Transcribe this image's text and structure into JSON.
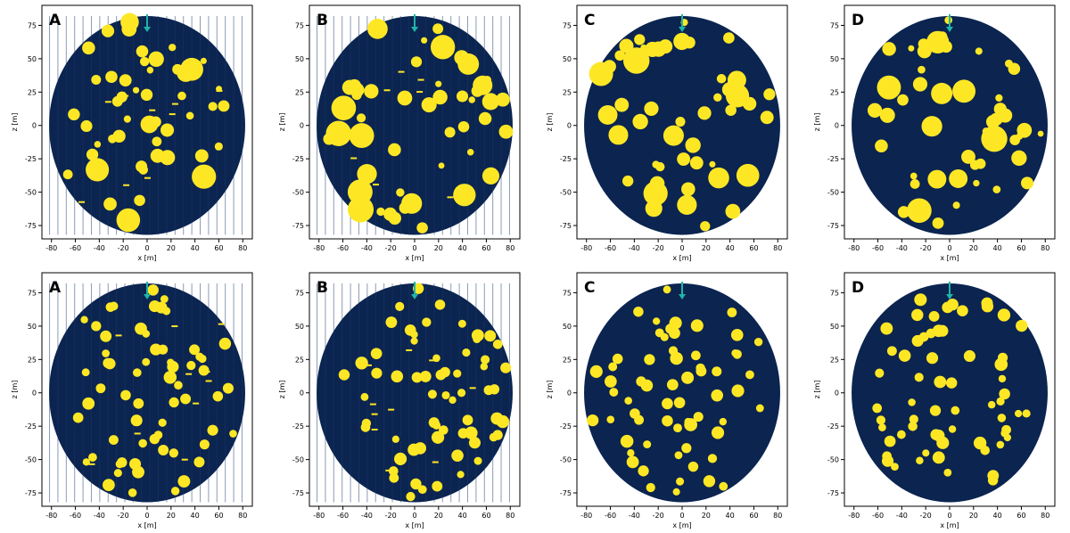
{
  "chart_data": [
    {
      "type": "heatmap",
      "panel_label": "A",
      "row": 0,
      "col": 0,
      "seed": 11,
      "big": true,
      "banded": true,
      "xlabel": "x [m]",
      "ylabel": "z [m]",
      "xticks": [
        -80,
        -60,
        -40,
        -20,
        0,
        20,
        40,
        60,
        80
      ],
      "yticks": [
        -75,
        -50,
        -25,
        0,
        25,
        50,
        75
      ],
      "xlim": [
        -88,
        88
      ],
      "ylim": [
        -85,
        90
      ],
      "disk_radius": 82,
      "arrow_x": 0
    },
    {
      "type": "heatmap",
      "panel_label": "B",
      "row": 0,
      "col": 1,
      "seed": 23,
      "big": true,
      "banded": true,
      "xlabel": "x [m]",
      "ylabel": "z [m]",
      "xticks": [
        -80,
        -60,
        -40,
        -20,
        0,
        20,
        40,
        60,
        80
      ],
      "yticks": [
        -75,
        -50,
        -25,
        0,
        25,
        50,
        75
      ],
      "xlim": [
        -88,
        88
      ],
      "ylim": [
        -85,
        90
      ],
      "disk_radius": 82,
      "arrow_x": 0
    },
    {
      "type": "heatmap",
      "panel_label": "C",
      "row": 0,
      "col": 2,
      "seed": 37,
      "big": true,
      "banded": false,
      "xlabel": "x [m]",
      "ylabel": "z [m]",
      "xticks": [
        -80,
        -60,
        -40,
        -20,
        0,
        20,
        40,
        60,
        80
      ],
      "yticks": [
        -75,
        -50,
        -25,
        0,
        25,
        50,
        75
      ],
      "xlim": [
        -88,
        88
      ],
      "ylim": [
        -85,
        90
      ],
      "disk_radius": 82,
      "arrow_x": 0
    },
    {
      "type": "heatmap",
      "panel_label": "D",
      "row": 0,
      "col": 3,
      "seed": 41,
      "big": true,
      "banded": false,
      "xlabel": "x [m]",
      "ylabel": "z [m]",
      "xticks": [
        -80,
        -60,
        -40,
        -20,
        0,
        20,
        40,
        60,
        80
      ],
      "yticks": [
        -75,
        -50,
        -25,
        0,
        25,
        50,
        75
      ],
      "xlim": [
        -88,
        88
      ],
      "ylim": [
        -85,
        90
      ],
      "disk_radius": 82,
      "arrow_x": 0
    },
    {
      "type": "heatmap",
      "panel_label": "A",
      "row": 1,
      "col": 0,
      "seed": 53,
      "big": false,
      "banded": true,
      "xlabel": "x [m]",
      "ylabel": "z [m]",
      "xticks": [
        -80,
        -60,
        -40,
        -20,
        0,
        20,
        40,
        60,
        80
      ],
      "yticks": [
        -75,
        -50,
        -25,
        0,
        25,
        50,
        75
      ],
      "xlim": [
        -88,
        88
      ],
      "ylim": [
        -85,
        90
      ],
      "disk_radius": 82,
      "arrow_x": 0
    },
    {
      "type": "heatmap",
      "panel_label": "B",
      "row": 1,
      "col": 1,
      "seed": 67,
      "big": false,
      "banded": true,
      "xlabel": "x [m]",
      "ylabel": "z [m]",
      "xticks": [
        -80,
        -60,
        -40,
        -20,
        0,
        20,
        40,
        60,
        80
      ],
      "yticks": [
        -75,
        -50,
        -25,
        0,
        25,
        50,
        75
      ],
      "xlim": [
        -88,
        88
      ],
      "ylim": [
        -85,
        90
      ],
      "disk_radius": 82,
      "arrow_x": 0
    },
    {
      "type": "heatmap",
      "panel_label": "C",
      "row": 1,
      "col": 2,
      "seed": 79,
      "big": false,
      "banded": false,
      "xlabel": "x [m]",
      "ylabel": "z [m]",
      "xticks": [
        -80,
        -60,
        -40,
        -20,
        0,
        20,
        40,
        60,
        80
      ],
      "yticks": [
        -75,
        -50,
        -25,
        0,
        25,
        50,
        75
      ],
      "xlim": [
        -88,
        88
      ],
      "ylim": [
        -85,
        90
      ],
      "disk_radius": 82,
      "arrow_x": 0
    },
    {
      "type": "heatmap",
      "panel_label": "D",
      "row": 1,
      "col": 3,
      "seed": 89,
      "big": false,
      "banded": false,
      "xlabel": "x [m]",
      "ylabel": "z [m]",
      "xticks": [
        -80,
        -60,
        -40,
        -20,
        0,
        20,
        40,
        60,
        80
      ],
      "yticks": [
        -75,
        -50,
        -25,
        0,
        25,
        50,
        75
      ],
      "xlim": [
        -88,
        88
      ],
      "ylim": [
        -85,
        90
      ],
      "disk_radius": 82,
      "arrow_x": 0
    }
  ],
  "colors": {
    "background_disk": "#0b2450",
    "inclusion": "#fde725",
    "arrow": "#1fb5a8",
    "axis": "#000000"
  }
}
